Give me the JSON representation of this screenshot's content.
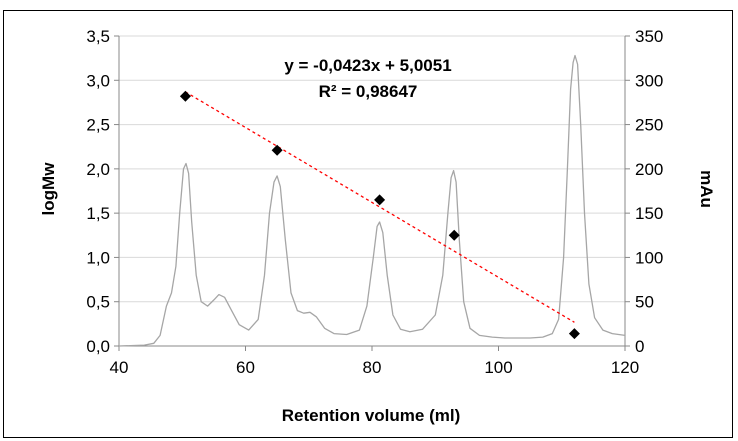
{
  "chart_data": {
    "type": "scatter",
    "title": "",
    "xlabel": "Retention volume (ml)",
    "ylabel": "logMw",
    "y2label": "mAu",
    "xlim": [
      40,
      120
    ],
    "ylim": [
      0,
      3.5
    ],
    "y2lim": [
      0,
      350
    ],
    "x_ticks": [
      "40",
      "60",
      "80",
      "100",
      "120"
    ],
    "y_ticks": [
      "0,0",
      "0,5",
      "1,0",
      "1,5",
      "2,0",
      "2,5",
      "3,0",
      "3,5"
    ],
    "y2_ticks": [
      "0",
      "50",
      "100",
      "150",
      "200",
      "250",
      "300",
      "350"
    ],
    "grid": "horizontal",
    "series": [
      {
        "kind": "points",
        "axis": "left",
        "marker": "diamond",
        "color": "#000000",
        "x": [
          50.5,
          65.0,
          81.2,
          93.0,
          112.0
        ],
        "y": [
          2.82,
          2.21,
          1.65,
          1.25,
          0.14
        ]
      },
      {
        "kind": "trendline",
        "axis": "left",
        "color": "#ff0000",
        "slope": -0.0423,
        "intercept": 5.0051,
        "x_range": [
          50.5,
          112.0
        ]
      },
      {
        "kind": "trace",
        "axis": "right",
        "color": "#a6a6a6",
        "x": [
          40,
          44,
          45.5,
          46.5,
          47.5,
          48.3,
          49.0,
          49.6,
          50.2,
          50.6,
          51.0,
          51.5,
          52.2,
          53.0,
          54.0,
          55.0,
          55.8,
          56.7,
          57.8,
          59.0,
          60.5,
          62.0,
          63.0,
          63.8,
          64.5,
          65.0,
          65.5,
          66.3,
          67.2,
          68.2,
          69.2,
          70.2,
          71.2,
          72.5,
          74.0,
          76.0,
          78.0,
          79.2,
          80.2,
          80.8,
          81.2,
          81.7,
          82.4,
          83.3,
          84.5,
          86.0,
          88.0,
          90.0,
          91.2,
          92.0,
          92.5,
          92.9,
          93.3,
          93.8,
          94.5,
          95.5,
          97.0,
          99.0,
          101.0,
          103.0,
          105.0,
          107.0,
          108.5,
          109.5,
          110.3,
          110.9,
          111.4,
          111.8,
          112.1,
          112.5,
          113.0,
          113.6,
          114.3,
          115.2,
          116.5,
          118.0,
          120.0
        ],
        "y": [
          0,
          1,
          3,
          12,
          45,
          60,
          90,
          150,
          200,
          206,
          195,
          140,
          80,
          50,
          45,
          52,
          58,
          55,
          40,
          24,
          18,
          30,
          80,
          150,
          185,
          192,
          180,
          120,
          60,
          40,
          37,
          38,
          33,
          20,
          14,
          13,
          18,
          45,
          100,
          135,
          140,
          128,
          80,
          35,
          19,
          16,
          19,
          35,
          80,
          150,
          190,
          198,
          185,
          120,
          50,
          20,
          12,
          10,
          9,
          9,
          9,
          10,
          14,
          30,
          100,
          200,
          290,
          320,
          328,
          318,
          250,
          150,
          70,
          32,
          18,
          14,
          12
        ]
      }
    ],
    "annotations": [
      "y = -0,0423x + 5,0051",
      "R² = 0,98647"
    ]
  }
}
